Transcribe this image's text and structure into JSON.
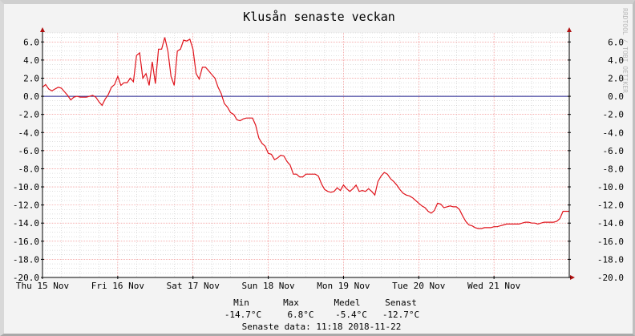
{
  "chart_data": {
    "type": "line",
    "title": "Klusån senaste veckan",
    "watermark": "RRDTOOL / TOBI OETIKER",
    "ylim": [
      -20,
      7
    ],
    "yticks": [
      6,
      4,
      2,
      0,
      -2,
      -4,
      -6,
      -8,
      -10,
      -12,
      -14,
      -16,
      -18,
      -20
    ],
    "ytick_labels": [
      "6.0",
      "4.0",
      "2.0",
      "0.0",
      "-2.0",
      "-4.0",
      "-6.0",
      "-8.0",
      "-10.0",
      "-12.0",
      "-14.0",
      "-16.0",
      "-18.0",
      "-20.0"
    ],
    "xlim": [
      0,
      168
    ],
    "xticks": [
      0,
      24,
      48,
      72,
      96,
      120,
      144
    ],
    "xtick_labels": [
      "Thu 15 Nov",
      "Fri 16 Nov",
      "Sat 17 Nov",
      "Sun 18 Nov",
      "Mon 19 Nov",
      "Tue 20 Nov",
      "Wed 21 Nov"
    ],
    "grid": true,
    "colors": {
      "line": "#e0141c",
      "zero_line": "#1c1c8c",
      "major_grid": "#f07f7f",
      "minor_grid": "#c0c0c0",
      "background": "#ffffff"
    },
    "series": [
      {
        "x": [
          0,
          1,
          2,
          3,
          4,
          5,
          6,
          7,
          8,
          9,
          10,
          11,
          12,
          13,
          14,
          15,
          16,
          17,
          18,
          19,
          20,
          21,
          22,
          23,
          24,
          25,
          26,
          27,
          28,
          29,
          30,
          31,
          32,
          33,
          34,
          35,
          36,
          37,
          38,
          39,
          40,
          41,
          42,
          43,
          44,
          45,
          46,
          47,
          48,
          49,
          50,
          51,
          52,
          53,
          54,
          55,
          56,
          57,
          58,
          59,
          60,
          61,
          62,
          63,
          64,
          65,
          66,
          67,
          68,
          69,
          70,
          71,
          72,
          73,
          74,
          75,
          76,
          77,
          78,
          79,
          80,
          81,
          82,
          83,
          84,
          85,
          86,
          87,
          88,
          89,
          90,
          91,
          92,
          93,
          94,
          95,
          96,
          97,
          98,
          99,
          100,
          101,
          102,
          103,
          104,
          105,
          106,
          107,
          108,
          109,
          110,
          111,
          112,
          113,
          114,
          115,
          116,
          117,
          118,
          119,
          120,
          121,
          122,
          123,
          124,
          125,
          126,
          127,
          128,
          129,
          130,
          131,
          132,
          133,
          134,
          135,
          136,
          137,
          138,
          139,
          140,
          141,
          142,
          143,
          144,
          145,
          146,
          147,
          148,
          149,
          150,
          151,
          152,
          153,
          154,
          155,
          156,
          157,
          158,
          159,
          160,
          161,
          162,
          163,
          164,
          165,
          166,
          167,
          168
        ],
        "y": [
          1.0,
          1.3,
          0.8,
          0.6,
          0.8,
          1.0,
          0.9,
          0.5,
          0.1,
          -0.4,
          -0.1,
          0.0,
          -0.1,
          -0.1,
          -0.1,
          0.0,
          0.1,
          -0.1,
          -0.6,
          -1.0,
          -0.3,
          0.2,
          1.0,
          1.3,
          2.2,
          1.2,
          1.5,
          1.5,
          2.0,
          1.6,
          4.5,
          4.8,
          2.0,
          2.5,
          1.2,
          3.8,
          1.4,
          5.2,
          5.2,
          6.5,
          5.0,
          2.2,
          1.2,
          5.0,
          5.2,
          6.2,
          6.1,
          6.3,
          5.2,
          2.5,
          1.9,
          3.2,
          3.2,
          2.8,
          2.4,
          2.0,
          1.0,
          0.3,
          -0.8,
          -1.2,
          -1.8,
          -2.0,
          -2.6,
          -2.7,
          -2.5,
          -2.4,
          -2.4,
          -2.4,
          -3.2,
          -4.6,
          -5.2,
          -5.5,
          -6.3,
          -6.4,
          -7.0,
          -6.8,
          -6.5,
          -6.6,
          -7.2,
          -7.6,
          -8.6,
          -8.6,
          -8.9,
          -8.9,
          -8.6,
          -8.6,
          -8.6,
          -8.6,
          -8.8,
          -9.7,
          -10.3,
          -10.5,
          -10.6,
          -10.5,
          -10.1,
          -10.4,
          -9.8,
          -10.2,
          -10.5,
          -10.2,
          -9.8,
          -10.5,
          -10.4,
          -10.5,
          -10.2,
          -10.5,
          -10.9,
          -9.4,
          -8.8,
          -8.4,
          -8.6,
          -9.1,
          -9.4,
          -9.8,
          -10.3,
          -10.7,
          -10.9,
          -11.0,
          -11.2,
          -11.5,
          -11.8,
          -12.1,
          -12.3,
          -12.7,
          -12.9,
          -12.6,
          -11.8,
          -11.9,
          -12.3,
          -12.2,
          -12.1,
          -12.2,
          -12.2,
          -12.5,
          -13.2,
          -13.8,
          -14.2,
          -14.3,
          -14.5,
          -14.6,
          -14.6,
          -14.5,
          -14.5,
          -14.5,
          -14.4,
          -14.4,
          -14.3,
          -14.2,
          -14.1,
          -14.1,
          -14.1,
          -14.1,
          -14.1,
          -14.0,
          -13.9,
          -13.9,
          -14.0,
          -14.0,
          -14.1,
          -14.0,
          -13.9,
          -13.9,
          -13.9,
          -13.9,
          -13.8,
          -13.5,
          -12.7,
          -12.7,
          -12.7
        ]
      }
    ],
    "legend": {
      "headers": [
        "Min",
        "Max",
        "Medel",
        "Senast"
      ],
      "values": [
        "-14.7°C",
        "6.8°C",
        "-5.4°C",
        "-12.7°C"
      ],
      "footer": "Senaste data: 11:18 2018-11-22"
    }
  }
}
